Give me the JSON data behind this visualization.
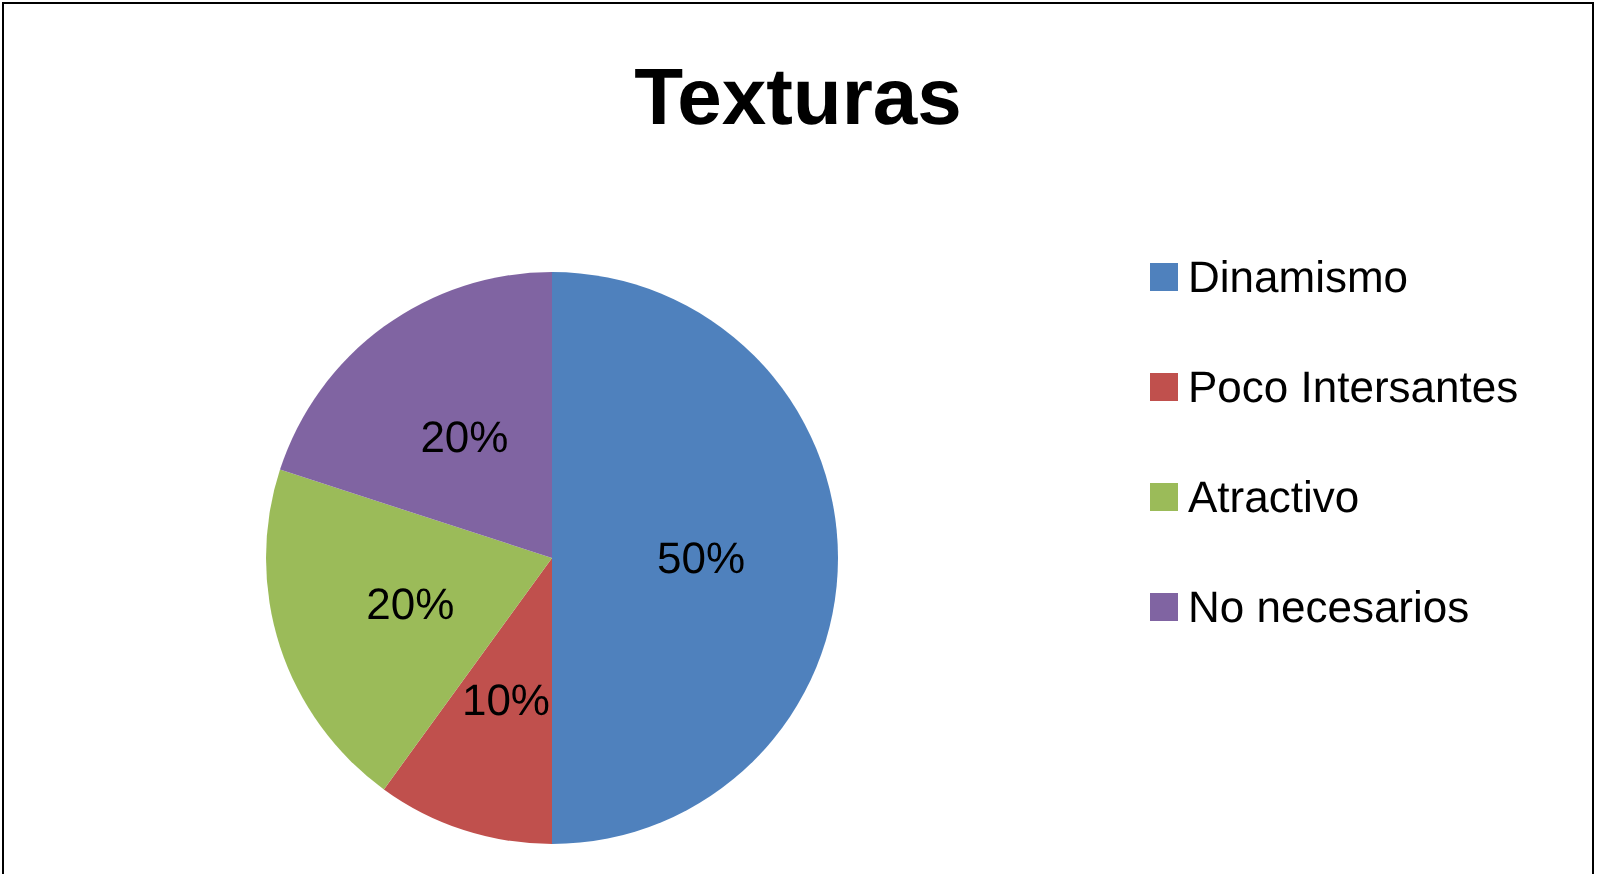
{
  "chart_data": {
    "type": "pie",
    "title": "Texturas",
    "categories": [
      "Dinamismo",
      "Poco Intersantes",
      "Atractivo",
      "No necesarios"
    ],
    "values": [
      50,
      10,
      20,
      20
    ],
    "colors": [
      "#4f81bd",
      "#c0504d",
      "#9bbb59",
      "#8064a2"
    ],
    "value_labels": [
      "50%",
      "10%",
      "20%",
      "20%"
    ],
    "legend": "right"
  }
}
